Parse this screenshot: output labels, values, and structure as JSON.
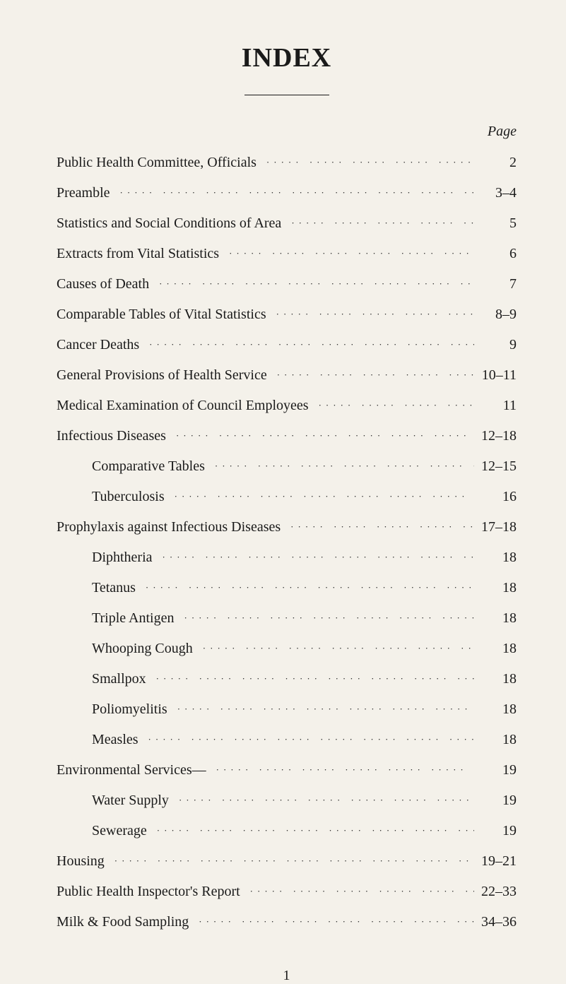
{
  "title": "INDEX",
  "page_heading": "Page",
  "footer_page_number": "1",
  "entries": [
    {
      "label": "Public Health Committee, Officials",
      "page": "2",
      "indent": 0
    },
    {
      "label": "Preamble",
      "page": "3–4",
      "indent": 0
    },
    {
      "label": "Statistics and Social Conditions of Area",
      "page": "5",
      "indent": 0
    },
    {
      "label": "Extracts from Vital Statistics",
      "page": "6",
      "indent": 0
    },
    {
      "label": "Causes of Death",
      "page": "7",
      "indent": 0
    },
    {
      "label": "Comparable Tables of Vital Statistics",
      "page": "8–9",
      "indent": 0
    },
    {
      "label": "Cancer Deaths",
      "page": "9",
      "indent": 0
    },
    {
      "label": "General Provisions of Health Service",
      "page": "10–11",
      "indent": 0
    },
    {
      "label": "Medical Examination of Council Employees",
      "page": "11",
      "indent": 0
    },
    {
      "label": "Infectious Diseases",
      "page": "12–18",
      "indent": 0
    },
    {
      "label": "Comparative Tables",
      "page": "12–15",
      "indent": 1
    },
    {
      "label": "Tuberculosis",
      "page": "16",
      "indent": 1
    },
    {
      "label": "Prophylaxis against Infectious Diseases",
      "page": "17–18",
      "indent": 0
    },
    {
      "label": "Diphtheria",
      "page": "18",
      "indent": 1
    },
    {
      "label": "Tetanus",
      "page": "18",
      "indent": 1
    },
    {
      "label": "Triple Antigen",
      "page": "18",
      "indent": 1
    },
    {
      "label": "Whooping Cough",
      "page": "18",
      "indent": 1
    },
    {
      "label": "Smallpox",
      "page": "18",
      "indent": 1
    },
    {
      "label": "Poliomyelitis",
      "page": "18",
      "indent": 1
    },
    {
      "label": "Measles",
      "page": "18",
      "indent": 1
    },
    {
      "label": "Environmental Services—",
      "page": "19",
      "indent": 0
    },
    {
      "label": "Water Supply",
      "page": "19",
      "indent": 1
    },
    {
      "label": "Sewerage",
      "page": "19",
      "indent": 1
    },
    {
      "label": "Housing",
      "page": "19–21",
      "indent": 0
    },
    {
      "label": "Public Health Inspector's Report",
      "page": "22–33",
      "indent": 0
    },
    {
      "label": "Milk & Food Sampling",
      "page": "34–36",
      "indent": 0
    }
  ],
  "style": {
    "background_color": "#f4f1ea",
    "text_color": "#1a1a1a",
    "title_fontsize": 38,
    "body_fontsize": 20,
    "font_family": "Times New Roman, serif",
    "leader_char": "·····"
  }
}
